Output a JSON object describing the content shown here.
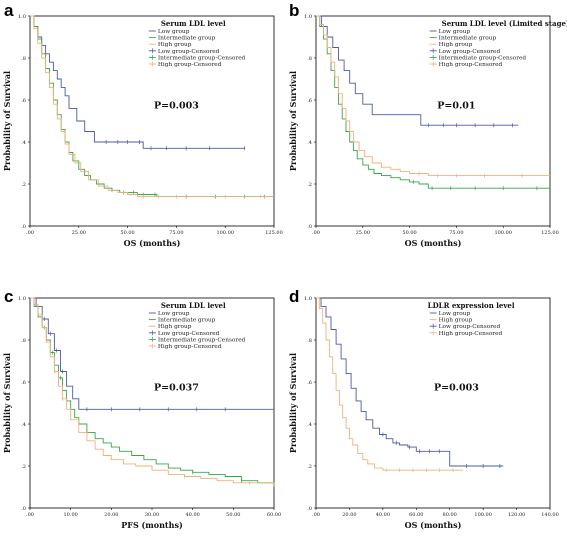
{
  "colors": {
    "low": "#4a5aa8",
    "intermediate": "#3aa54a",
    "high": "#f1b07a"
  },
  "chart_data": [
    {
      "type": "line",
      "panel": "a",
      "title": "Serum LDL level",
      "xlabel": "OS (months)",
      "ylabel": "Probability of Survival",
      "pvalue": "P=0.003",
      "xlim": [
        0,
        125
      ],
      "ylim": [
        0,
        1
      ],
      "xticks": [
        ".00",
        "25.00",
        "50.00",
        "75.00",
        "100.00",
        "125.00"
      ],
      "yticks": [
        ".0",
        ".2",
        ".4",
        ".6",
        ".8",
        "1.0"
      ],
      "legend": [
        "Low group",
        "Intermediate group",
        "High group",
        "Low group-Censored",
        "Intermediate group-Censored",
        "High group-Censored"
      ],
      "series": [
        {
          "name": "Low group",
          "color": "low",
          "x": [
            0,
            2,
            4,
            6,
            8,
            10,
            12,
            14,
            16,
            18,
            20,
            24,
            28,
            33,
            38,
            58,
            110
          ],
          "y": [
            1,
            0.95,
            0.9,
            0.86,
            0.82,
            0.78,
            0.74,
            0.7,
            0.66,
            0.62,
            0.56,
            0.5,
            0.45,
            0.4,
            0.4,
            0.37,
            0.37
          ],
          "censored": [
            39,
            45,
            50,
            56,
            62,
            70,
            80,
            92,
            110
          ]
        },
        {
          "name": "Intermediate group",
          "color": "intermediate",
          "x": [
            0,
            2,
            4,
            6,
            8,
            10,
            12,
            14,
            16,
            18,
            20,
            22,
            25,
            28,
            31,
            34,
            38,
            42,
            46,
            50,
            55,
            60,
            65,
            70,
            125
          ],
          "y": [
            1,
            0.95,
            0.89,
            0.82,
            0.75,
            0.68,
            0.6,
            0.53,
            0.46,
            0.4,
            0.35,
            0.31,
            0.27,
            0.24,
            0.22,
            0.2,
            0.18,
            0.17,
            0.16,
            0.16,
            0.15,
            0.15,
            0.14,
            0.14,
            0.14
          ],
          "censored": [
            42,
            48,
            53,
            58,
            64,
            80,
            95,
            110,
            120
          ]
        },
        {
          "name": "High group",
          "color": "high",
          "x": [
            0,
            2,
            4,
            6,
            8,
            10,
            12,
            14,
            16,
            18,
            20,
            23,
            26,
            30,
            35,
            40,
            45,
            50,
            55,
            60,
            70,
            125
          ],
          "y": [
            1,
            0.94,
            0.87,
            0.8,
            0.73,
            0.66,
            0.58,
            0.51,
            0.45,
            0.39,
            0.34,
            0.3,
            0.26,
            0.22,
            0.19,
            0.17,
            0.16,
            0.15,
            0.14,
            0.14,
            0.14,
            0.14
          ],
          "censored": [
            58,
            66,
            75,
            100,
            118
          ]
        }
      ]
    },
    {
      "type": "line",
      "panel": "b",
      "title": "Serum LDL level (Limited stage)",
      "xlabel": "OS (months)",
      "ylabel": "Probability of Survival",
      "pvalue": "P=0.01",
      "xlim": [
        0,
        125
      ],
      "ylim": [
        0,
        1
      ],
      "xticks": [
        ".00",
        "25.00",
        "50.00",
        "75.00",
        "100.00",
        "125.00"
      ],
      "yticks": [
        ".0",
        ".2",
        ".4",
        ".6",
        ".8",
        "1.0"
      ],
      "legend": [
        "Low group",
        "Intermediate group",
        "High group",
        "Low group-Censored",
        "Intermediate group-Censored",
        "High group-Censored"
      ],
      "series": [
        {
          "name": "Low group",
          "color": "low",
          "x": [
            0,
            3,
            6,
            9,
            12,
            15,
            18,
            21,
            25,
            30,
            35,
            48,
            56,
            58,
            108
          ],
          "y": [
            1,
            0.95,
            0.9,
            0.85,
            0.79,
            0.74,
            0.68,
            0.63,
            0.58,
            0.53,
            0.53,
            0.53,
            0.48,
            0.48,
            0.48
          ],
          "censored": [
            60,
            68,
            75,
            85,
            95,
            105
          ]
        },
        {
          "name": "Intermediate group",
          "color": "intermediate",
          "x": [
            0,
            2,
            4,
            6,
            8,
            10,
            12,
            14,
            16,
            18,
            20,
            22,
            25,
            28,
            31,
            35,
            40,
            45,
            50,
            55,
            60,
            125
          ],
          "y": [
            1,
            0.95,
            0.89,
            0.82,
            0.74,
            0.66,
            0.58,
            0.51,
            0.45,
            0.4,
            0.36,
            0.32,
            0.29,
            0.27,
            0.25,
            0.24,
            0.23,
            0.22,
            0.21,
            0.2,
            0.18,
            0.18
          ],
          "censored": [
            52,
            62,
            72,
            85,
            100,
            118
          ]
        },
        {
          "name": "High group",
          "color": "high",
          "x": [
            0,
            2,
            4,
            6,
            8,
            10,
            12,
            14,
            16,
            18,
            20,
            23,
            26,
            30,
            35,
            40,
            45,
            50,
            60,
            125
          ],
          "y": [
            1,
            0.96,
            0.91,
            0.85,
            0.78,
            0.71,
            0.63,
            0.56,
            0.5,
            0.45,
            0.4,
            0.36,
            0.33,
            0.3,
            0.28,
            0.27,
            0.26,
            0.25,
            0.24,
            0.24
          ],
          "censored": [
            55,
            65,
            75,
            90,
            110
          ]
        }
      ]
    },
    {
      "type": "line",
      "panel": "c",
      "title": "Serum LDL level",
      "xlabel": "PFS (months)",
      "ylabel": "Probability of Survival",
      "pvalue": "P=0.037",
      "xlim": [
        0,
        60
      ],
      "ylim": [
        0,
        1
      ],
      "xticks": [
        ".00",
        "10.00",
        "20.00",
        "30.00",
        "40.00",
        "50.00",
        "60.00"
      ],
      "yticks": [
        ".0",
        ".2",
        ".4",
        ".6",
        ".8",
        "1.0"
      ],
      "legend": [
        "Low group",
        "Intermediate group",
        "High group",
        "Low group-Censored",
        "Intermediate group-Censored",
        "High group-Censored"
      ],
      "series": [
        {
          "name": "Low group",
          "color": "low",
          "x": [
            0,
            1.5,
            3,
            4.5,
            6,
            7.5,
            9,
            10.5,
            12,
            13,
            60
          ],
          "y": [
            1,
            0.96,
            0.9,
            0.83,
            0.75,
            0.65,
            0.58,
            0.52,
            0.47,
            0.47,
            0.47
          ],
          "censored": [
            2,
            3.5,
            5,
            6.5,
            8,
            14,
            20,
            27,
            34,
            41,
            48
          ]
        },
        {
          "name": "Intermediate group",
          "color": "intermediate",
          "x": [
            0,
            1,
            2,
            3,
            4,
            5,
            6,
            7,
            8,
            9,
            10,
            11,
            12,
            14,
            16,
            18,
            20,
            22,
            25,
            28,
            31,
            34,
            37,
            40,
            44,
            48,
            52,
            56,
            60
          ],
          "y": [
            1,
            0.96,
            0.91,
            0.86,
            0.8,
            0.74,
            0.68,
            0.62,
            0.56,
            0.51,
            0.47,
            0.43,
            0.4,
            0.36,
            0.33,
            0.31,
            0.29,
            0.27,
            0.25,
            0.23,
            0.21,
            0.19,
            0.18,
            0.17,
            0.16,
            0.15,
            0.13,
            0.12,
            0.1
          ],
          "censored": [
            3.5,
            5.5,
            7.5,
            40,
            52
          ]
        },
        {
          "name": "High group",
          "color": "high",
          "x": [
            0,
            1,
            2,
            3,
            4,
            5,
            6,
            7,
            8,
            9,
            10,
            12,
            14,
            16,
            18,
            20,
            23,
            26,
            30,
            34,
            38,
            42,
            46,
            50,
            55,
            60
          ],
          "y": [
            1,
            0.97,
            0.92,
            0.86,
            0.79,
            0.72,
            0.65,
            0.58,
            0.52,
            0.47,
            0.42,
            0.36,
            0.32,
            0.28,
            0.25,
            0.23,
            0.21,
            0.2,
            0.18,
            0.16,
            0.15,
            0.14,
            0.13,
            0.12,
            0.12,
            0.12
          ],
          "censored": [
            6,
            8,
            38,
            54
          ]
        }
      ]
    },
    {
      "type": "line",
      "panel": "d",
      "title": "LDLR expression level",
      "xlabel": "OS (months)",
      "ylabel": "Probability of Survival",
      "pvalue": "P=0.003",
      "xlim": [
        0,
        140
      ],
      "ylim": [
        0,
        1
      ],
      "xticks": [
        ".00",
        "20.00",
        "40.00",
        "60.00",
        "80.00",
        "100.00",
        "120.00",
        "140.00"
      ],
      "yticks": [
        ".0",
        ".2",
        ".4",
        ".6",
        ".8",
        "1.0"
      ],
      "legend": [
        "Low group",
        "High group",
        "Low group-Censored",
        "High group-Censored"
      ],
      "series": [
        {
          "name": "Low group",
          "color": "low",
          "x": [
            0,
            3,
            6,
            9,
            12,
            15,
            18,
            21,
            24,
            27,
            30,
            34,
            38,
            42,
            46,
            50,
            55,
            60,
            65,
            70,
            75,
            80,
            85,
            112
          ],
          "y": [
            1,
            0.96,
            0.91,
            0.85,
            0.78,
            0.71,
            0.64,
            0.57,
            0.51,
            0.46,
            0.42,
            0.38,
            0.35,
            0.33,
            0.31,
            0.3,
            0.29,
            0.27,
            0.27,
            0.27,
            0.27,
            0.2,
            0.2,
            0.2
          ],
          "censored": [
            40,
            48,
            56,
            62,
            68,
            74,
            90,
            100,
            110
          ]
        },
        {
          "name": "High group",
          "color": "high",
          "x": [
            0,
            2,
            4,
            6,
            8,
            10,
            12,
            14,
            16,
            18,
            20,
            22,
            25,
            28,
            31,
            35,
            40,
            45,
            50,
            60,
            70,
            88
          ],
          "y": [
            1,
            0.95,
            0.88,
            0.8,
            0.72,
            0.64,
            0.56,
            0.49,
            0.43,
            0.38,
            0.33,
            0.3,
            0.26,
            0.23,
            0.21,
            0.19,
            0.18,
            0.18,
            0.18,
            0.18,
            0.18,
            0.18
          ],
          "censored": [
            42,
            50,
            58,
            66,
            74,
            82
          ]
        }
      ]
    }
  ]
}
